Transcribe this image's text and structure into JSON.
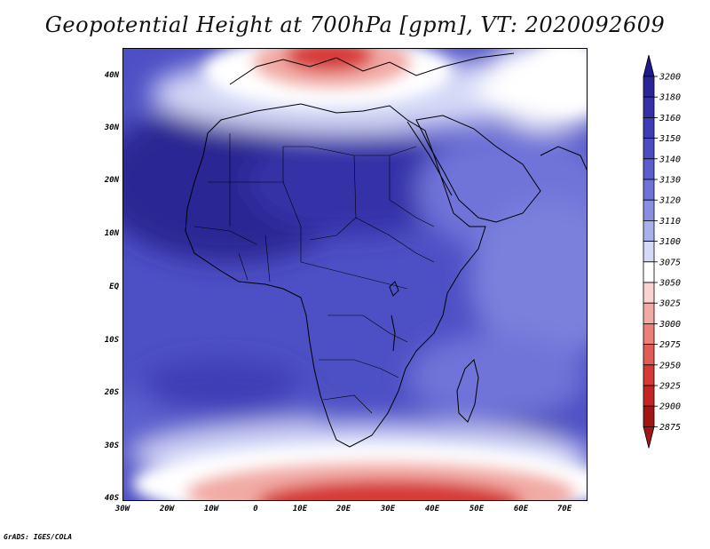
{
  "title": "Geopotential Height at 700hPa [gpm], VT: 2020092609",
  "credit": "GrADS: IGES/COLA",
  "map": {
    "lat_ticks": [
      "40N",
      "30N",
      "20N",
      "10N",
      "EQ",
      "10S",
      "20S",
      "30S",
      "40S"
    ],
    "lon_ticks": [
      "30W",
      "20W",
      "10W",
      "0",
      "10E",
      "20E",
      "30E",
      "40E",
      "50E",
      "60E",
      "70E"
    ],
    "lat_range": [
      -40,
      45
    ],
    "lon_range": [
      -30,
      75
    ]
  },
  "colorbar": {
    "levels": [
      "3200",
      "3180",
      "3160",
      "3150",
      "3140",
      "3130",
      "3120",
      "3110",
      "3100",
      "3075",
      "3050",
      "3025",
      "3000",
      "2975",
      "2950",
      "2925",
      "2900",
      "2875"
    ],
    "colors": [
      "#1f1a8c",
      "#2a2499",
      "#3530a8",
      "#3f3db6",
      "#4c4cc2",
      "#5c5ece",
      "#6f73d8",
      "#888ee2",
      "#a9b0ee",
      "#d5d9f7",
      "#ffffff",
      "#f8d3d0",
      "#f2aaa4",
      "#ea8078",
      "#e25b55",
      "#d63a37",
      "#c42424",
      "#a31515"
    ]
  }
}
